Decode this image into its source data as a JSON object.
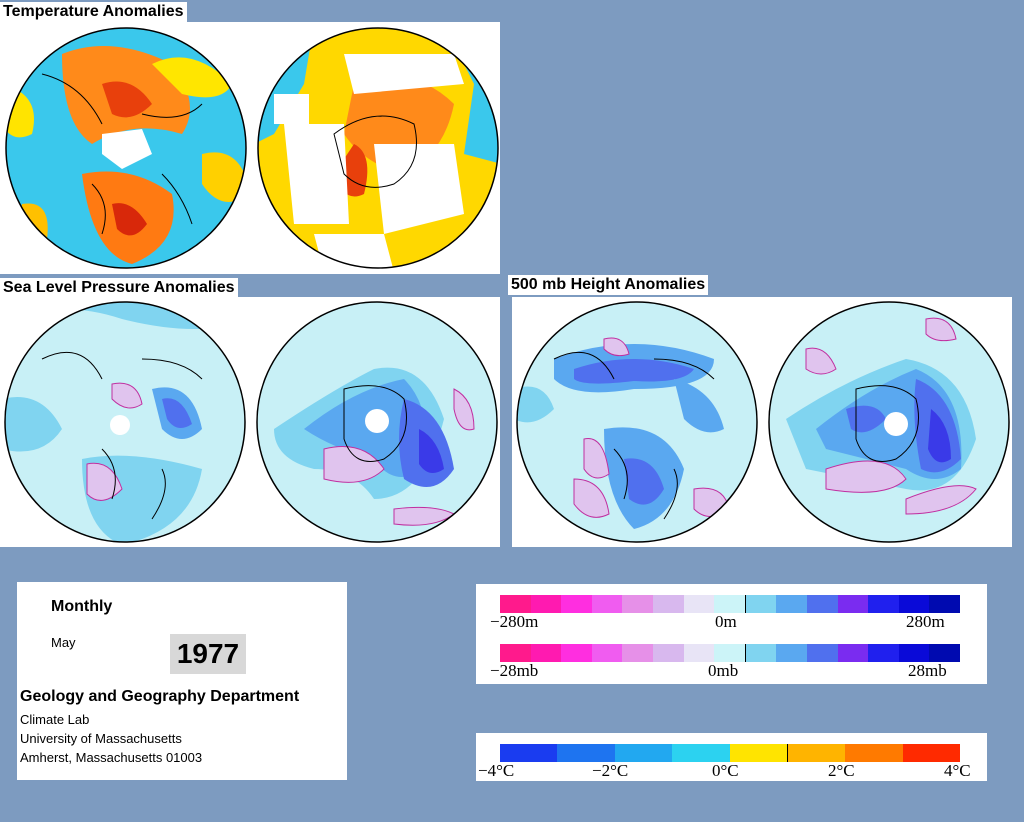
{
  "panels": {
    "temperature_title": "Temperature Anomalies",
    "slp_title": "Sea Level Pressure Anomalies",
    "height_title": "500 mb Height Anomalies"
  },
  "info": {
    "period": "Monthly",
    "month": "May",
    "year": "1977",
    "department": "Geology and Geography Department",
    "line1": "Climate Lab",
    "line2": "University of Massachusetts",
    "line3": "Amherst, Massachusetts 01003"
  },
  "legend_height": {
    "left": "−280m",
    "mid": "0m",
    "right": "280m",
    "colors": [
      "#ff1a8c",
      "#ff1ab0",
      "#ff2ee0",
      "#f05cf0",
      "#e690e8",
      "#d8b8ee",
      "#e8e4f6",
      "#ccf4f8",
      "#80d4f0",
      "#5aa8f0",
      "#5070ee",
      "#7a2cf0",
      "#2020ee",
      "#0a0ad8",
      "#000ab0"
    ]
  },
  "legend_pressure": {
    "left": "−28mb",
    "mid": "0mb",
    "right": "28mb",
    "colors": [
      "#ff1a8c",
      "#ff1ab0",
      "#ff2ee0",
      "#f05cf0",
      "#e690e8",
      "#d8b8ee",
      "#e8e4f6",
      "#ccf4f8",
      "#80d4f0",
      "#5aa8f0",
      "#5070ee",
      "#7a2cf0",
      "#2020ee",
      "#0a0ad8",
      "#000ab0"
    ]
  },
  "legend_temp": {
    "labels": [
      "−4°C",
      "−2°C",
      "0°C",
      "2°C",
      "4°C"
    ],
    "colors": [
      "#1a3cf0",
      "#1e74f0",
      "#22a8f0",
      "#2cd2f0",
      "#ffe400",
      "#ffb400",
      "#ff7a00",
      "#ff2a00"
    ]
  }
}
